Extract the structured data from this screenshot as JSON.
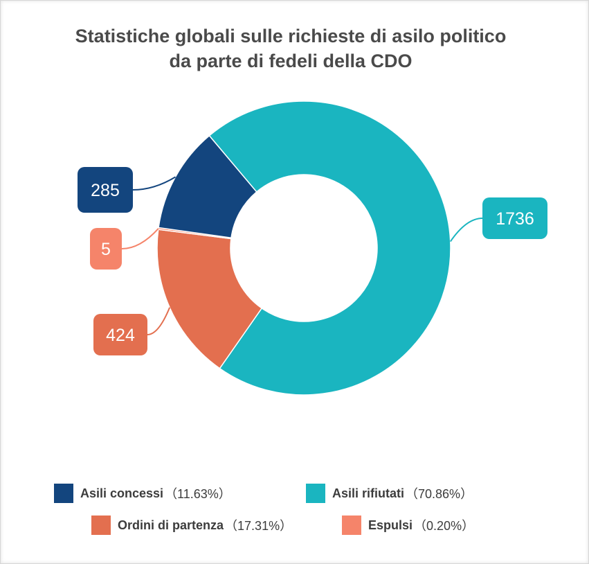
{
  "chart_data": {
    "type": "pie",
    "donut": true,
    "title": [
      "Statistiche globali sulle richieste di asilo politico",
      "da parte di fedeli della CDO"
    ],
    "slices": [
      {
        "name": "Asili rifiutati",
        "value": 1736,
        "percent_label": "（70.86%）",
        "color": "#1ab5c0",
        "callout_text": "1736"
      },
      {
        "name": "Ordini di partenza",
        "value": 424,
        "percent_label": "（17.31%）",
        "color": "#e36f4f",
        "callout_text": "424"
      },
      {
        "name": "Espulsi",
        "value": 5,
        "percent_label": "（0.20%）",
        "color": "#f5846a",
        "callout_text": "5"
      },
      {
        "name": "Asili concessi",
        "value": 285,
        "percent_label": "（11.63%）",
        "color": "#13457e",
        "callout_text": "285"
      }
    ],
    "legend_placement": "bottom",
    "legend": [
      {
        "name": "Asili concessi",
        "percent_label": "（11.63%）",
        "color": "#13457e"
      },
      {
        "name": "Asili rifiutati",
        "percent_label": "（70.86%）",
        "color": "#1ab5c0"
      },
      {
        "name": "Ordini di partenza",
        "percent_label": "（17.31%）",
        "color": "#e36f4f"
      },
      {
        "name": "Espulsi",
        "percent_label": "（0.20%）",
        "color": "#f5846a"
      }
    ]
  }
}
